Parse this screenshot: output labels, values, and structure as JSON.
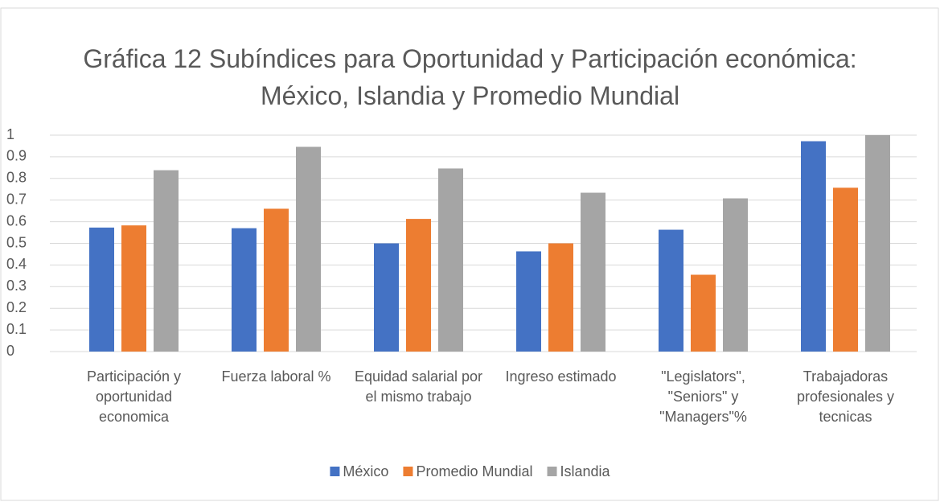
{
  "chart_data": {
    "type": "bar",
    "title": "Gráfica 12 Subíndices para Oportunidad y Participación económica: México, Islandia y Promedio Mundial",
    "categories": [
      "Participación y oportunidad economica",
      "Fuerza laboral %",
      "Equidad salarial por el mismo trabajo",
      "Ingreso estimado",
      "\"Legislators\", \"Seniors\" y \"Managers\"%",
      "Trabajadoras profesionales y tecnicas"
    ],
    "series": [
      {
        "name": "México",
        "color": "#4472c4",
        "values": [
          0.573,
          0.57,
          0.5,
          0.463,
          0.563,
          0.972
        ]
      },
      {
        "name": "Promedio Mundial",
        "color": "#ed7d31",
        "values": [
          0.583,
          0.66,
          0.613,
          0.5,
          0.355,
          0.757
        ]
      },
      {
        "name": "Islandia",
        "color": "#a5a5a5",
        "values": [
          0.838,
          0.946,
          0.846,
          0.734,
          0.708,
          1.0
        ]
      }
    ],
    "ylim": [
      0,
      1
    ],
    "yticks": [
      0,
      0.1,
      0.2,
      0.3,
      0.4,
      0.5,
      0.6,
      0.7,
      0.8,
      0.9,
      1
    ],
    "grid": true,
    "legend": "bottom"
  }
}
